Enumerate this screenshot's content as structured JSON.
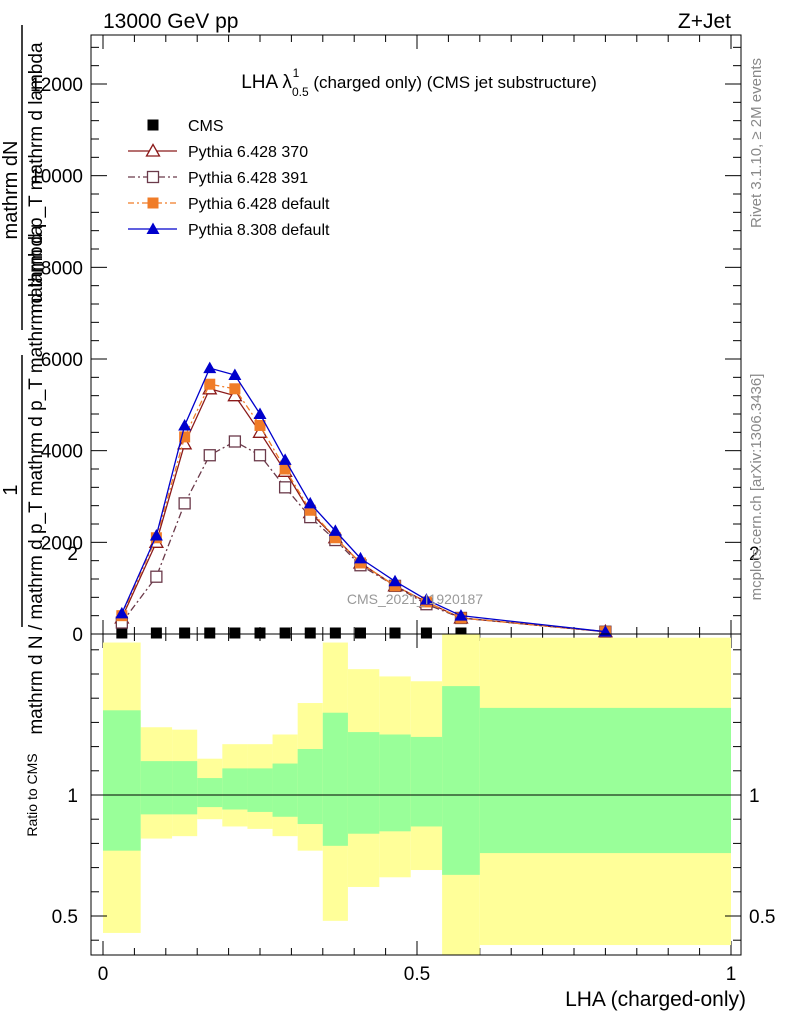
{
  "header": {
    "left": "13000 GeV pp",
    "right": "Z+Jet"
  },
  "side_labels": {
    "rivet": "Rivet 3.1.10, ≥ 2M events",
    "mcplots": "mcplots.cern.ch [arXiv:1306.3436]"
  },
  "watermark": "CMS_2021_I1920187",
  "chart_data": {
    "type": "line",
    "title": "LHA λ",
    "title_sup": "1",
    "title_sub": "0.5",
    "title_rest": "(charged only) (CMS jet substructure)",
    "xlabel": "LHA (charged-only)",
    "ylabel_num": "mathrm dN",
    "ylabel_den": "mathrm d p_T mathrm d lambda",
    "ylabel_pre_num": "1",
    "ylabel_pre_den": "mathrm d N / mathrm d p_T mathrm d p_T mathrm d lambda",
    "ratio_ylabel": "Ratio to CMS",
    "xlim": [
      0,
      1
    ],
    "ylim": [
      0,
      13000
    ],
    "ratio_ylim": [
      0.35,
      2.3
    ],
    "x_ticks": [
      "0",
      "0.5",
      "1"
    ],
    "y_ticks": [
      "0",
      "2000",
      "4000",
      "6000",
      "8000",
      "10000",
      "12000"
    ],
    "ratio_ticks": [
      "0.5",
      "1",
      "2"
    ],
    "x": [
      0.03,
      0.085,
      0.13,
      0.17,
      0.21,
      0.25,
      0.29,
      0.33,
      0.37,
      0.41,
      0.465,
      0.515,
      0.57,
      0.8
    ],
    "series": [
      {
        "name": "CMS",
        "color": "#000000",
        "marker": "square",
        "values": [
          8,
          8,
          8,
          8,
          8,
          8,
          8,
          8,
          8,
          8,
          8,
          8,
          8,
          8
        ]
      },
      {
        "name": "Pythia 6.428 370",
        "color": "#8b1a1a",
        "marker": "triangle-open",
        "dash": "",
        "values": [
          350,
          2000,
          4150,
          5350,
          5200,
          4400,
          3550,
          2650,
          2100,
          1550,
          1050,
          700,
          350,
          50
        ]
      },
      {
        "name": "Pythia 6.428 391",
        "color": "#6b3a4a",
        "marker": "square-open",
        "dash": "7,3,2,3",
        "values": [
          250,
          1250,
          2850,
          3900,
          4200,
          3900,
          3200,
          2550,
          2050,
          1500,
          1050,
          650,
          350,
          50
        ]
      },
      {
        "name": "Pythia 6.428 default",
        "color": "#f07c28",
        "marker": "square",
        "dash": "6,3,2,3",
        "values": [
          400,
          2100,
          4300,
          5450,
          5350,
          4550,
          3600,
          2700,
          2100,
          1550,
          1050,
          700,
          350,
          50
        ]
      },
      {
        "name": "Pythia 8.308 default",
        "color": "#0000cc",
        "marker": "triangle",
        "dash": "",
        "values": [
          450,
          2150,
          4550,
          5800,
          5650,
          4800,
          3800,
          2850,
          2250,
          1650,
          1150,
          750,
          400,
          50
        ]
      }
    ],
    "ratio_bands": {
      "edges": [
        0,
        0.06,
        0.11,
        0.15,
        0.19,
        0.23,
        0.27,
        0.31,
        0.35,
        0.39,
        0.44,
        0.49,
        0.54,
        0.6,
        1.0
      ],
      "yellow_low": [
        0.43,
        0.82,
        0.83,
        0.9,
        0.87,
        0.86,
        0.83,
        0.77,
        0.48,
        0.62,
        0.66,
        0.69,
        0.33,
        0.38
      ],
      "yellow_high": [
        1.63,
        1.28,
        1.27,
        1.15,
        1.21,
        1.21,
        1.25,
        1.38,
        1.63,
        1.52,
        1.49,
        1.47,
        1.79,
        1.65
      ],
      "green_low": [
        0.77,
        0.92,
        0.92,
        0.95,
        0.94,
        0.93,
        0.91,
        0.88,
        0.79,
        0.84,
        0.85,
        0.87,
        0.67,
        0.76
      ],
      "green_high": [
        1.35,
        1.14,
        1.14,
        1.07,
        1.11,
        1.11,
        1.13,
        1.19,
        1.34,
        1.26,
        1.25,
        1.24,
        1.45,
        1.36
      ]
    }
  }
}
